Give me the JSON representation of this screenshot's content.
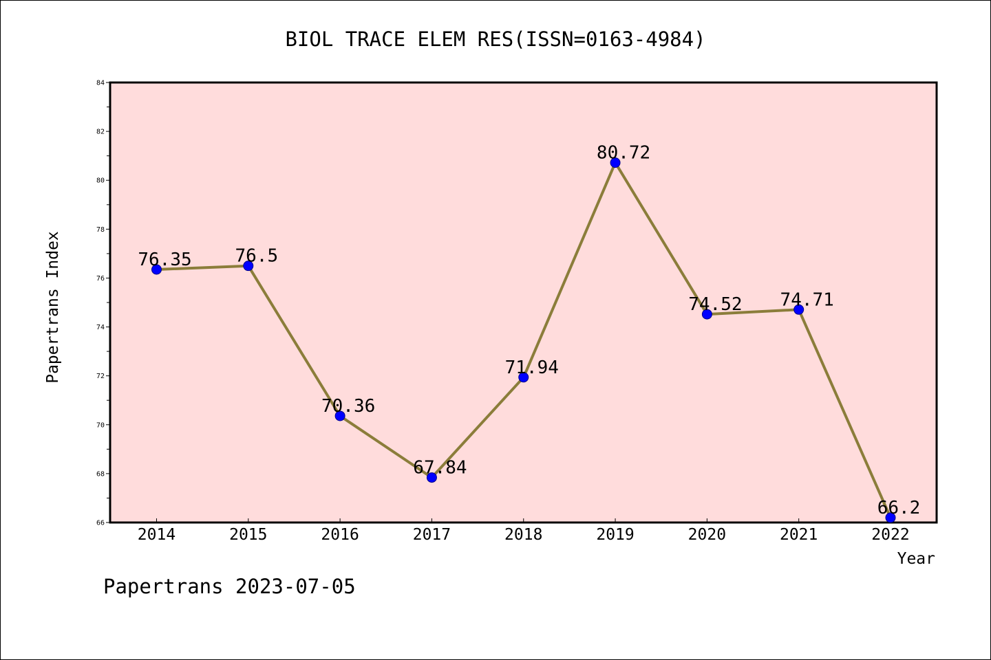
{
  "chart_data": {
    "type": "line",
    "title": "BIOL TRACE ELEM RES(ISSN=0163-4984)",
    "xlabel": "Year",
    "ylabel": "Papertrans Index",
    "footer": "Papertrans 2023-07-05",
    "categories": [
      "2014",
      "2015",
      "2016",
      "2017",
      "2018",
      "2019",
      "2020",
      "2021",
      "2022"
    ],
    "series": [
      {
        "values": [
          76.35,
          76.5,
          70.36,
          67.84,
          71.94,
          80.72,
          74.52,
          74.71,
          66.2
        ],
        "labels": [
          "76.35",
          "76.5",
          "70.36",
          "67.84",
          "71.94",
          "80.72",
          "74.52",
          "74.71",
          "66.2"
        ],
        "line_color": "#8b7d3a",
        "marker_color": "#0000ff"
      }
    ],
    "ylim": [
      66,
      84
    ],
    "y_major_ticks": [
      "66",
      "68",
      "70",
      "72",
      "74",
      "76",
      "78",
      "80",
      "82",
      "84"
    ],
    "y_tick_step": 2,
    "grid": false,
    "legend": "none",
    "plot_background": "#ffdcdc"
  }
}
